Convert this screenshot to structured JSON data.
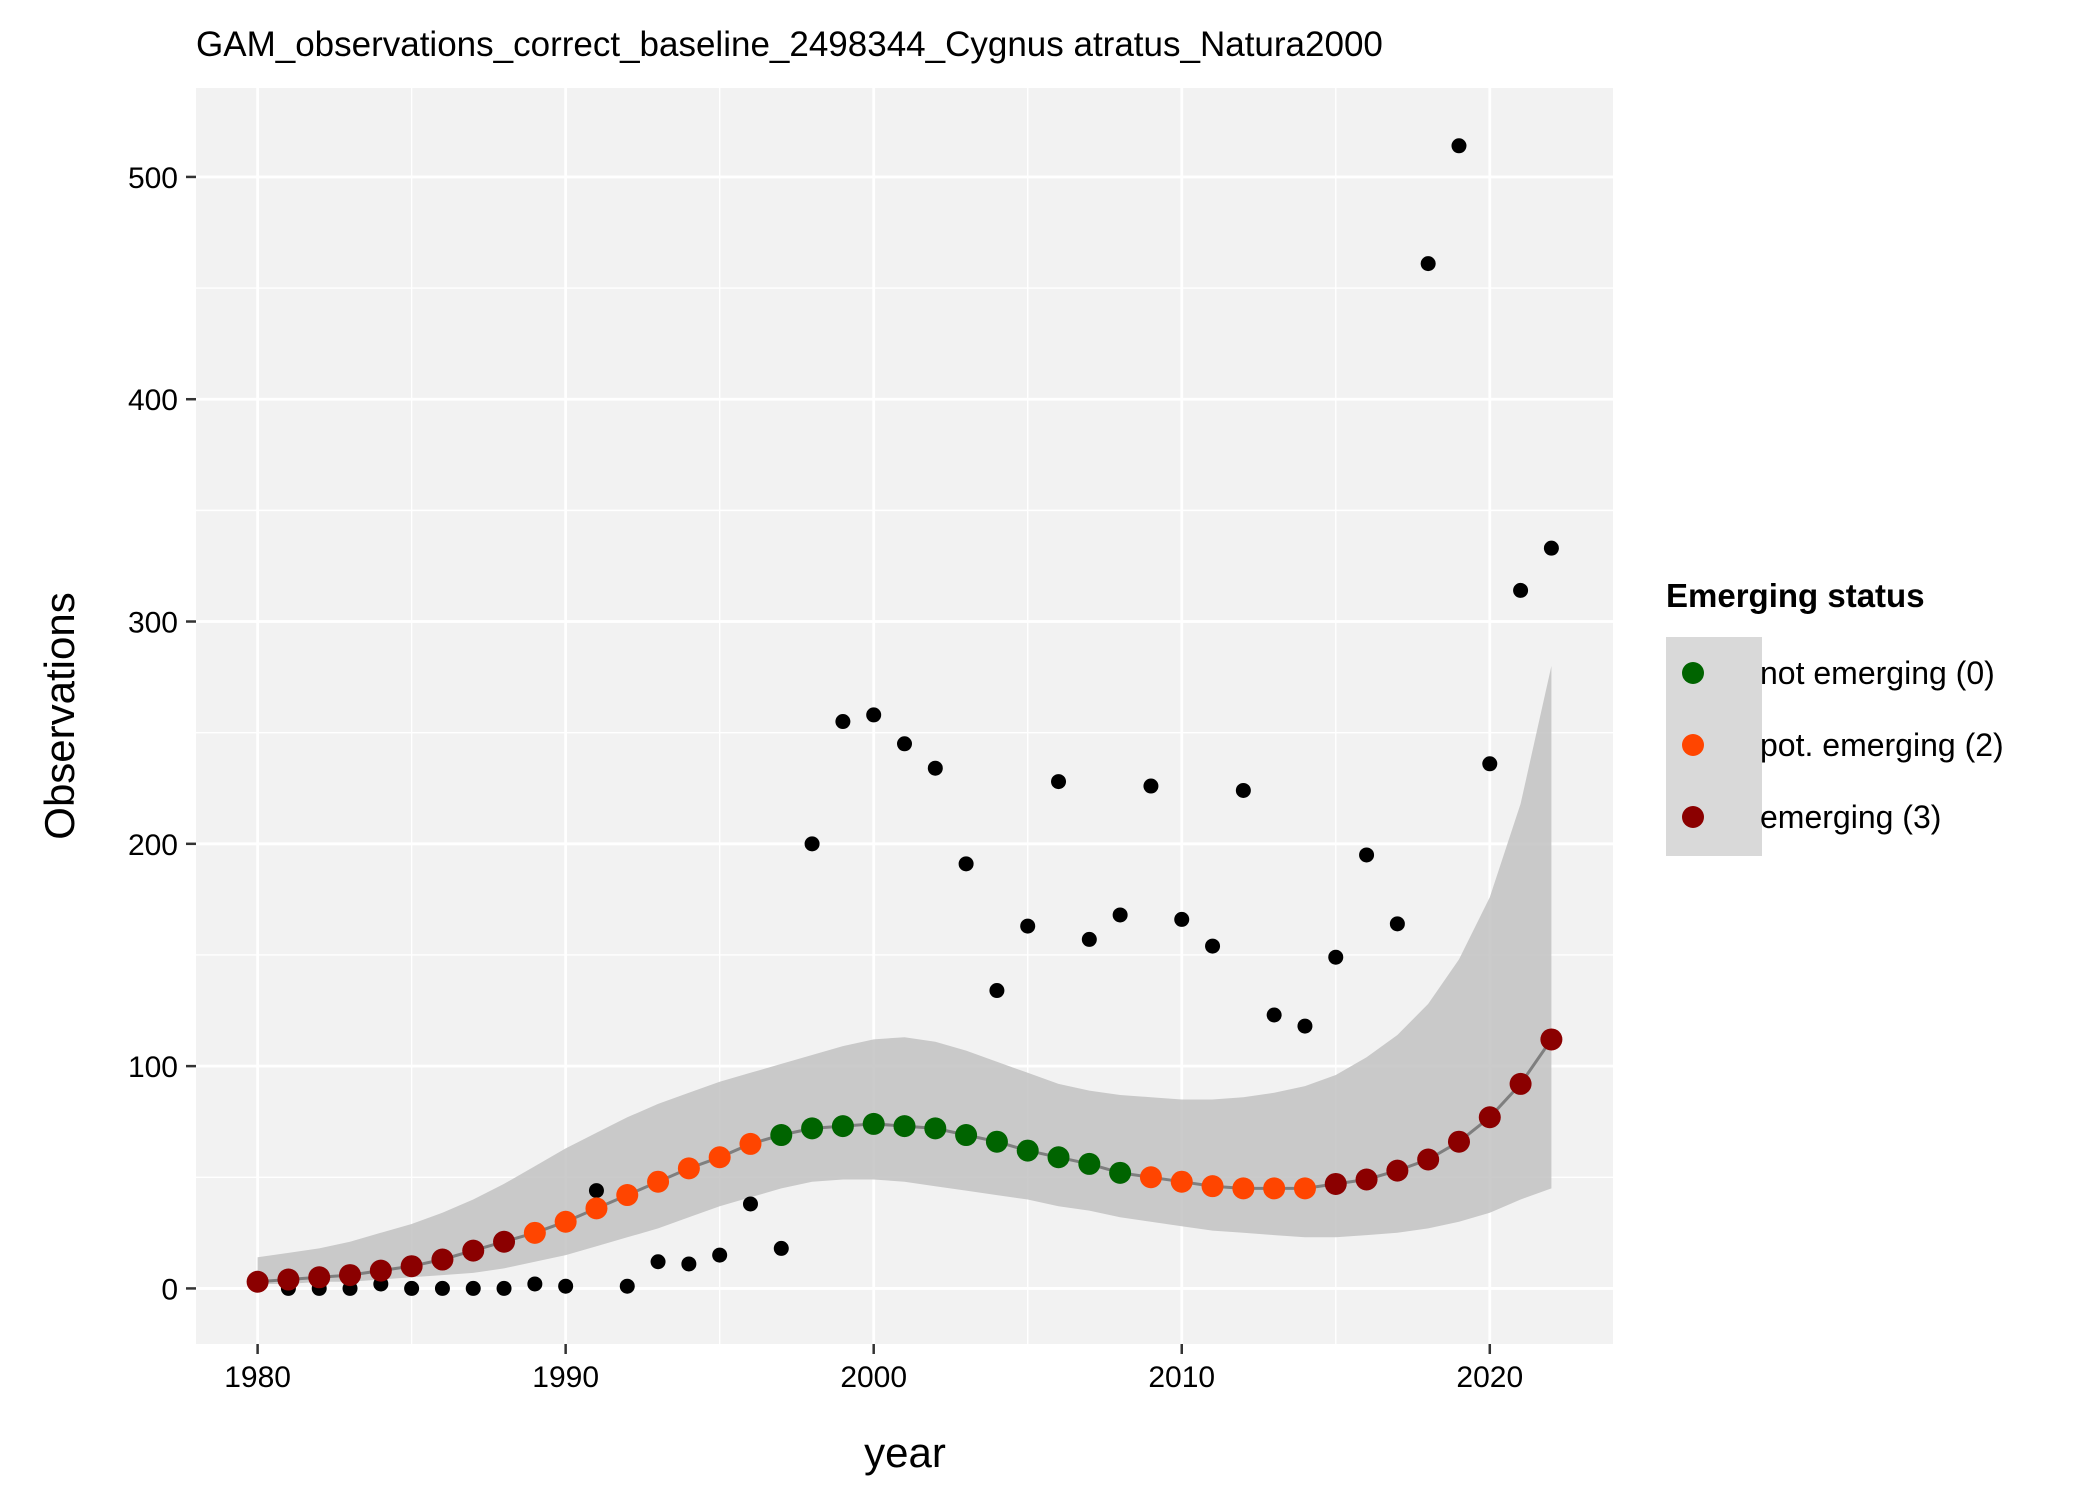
{
  "chart_data": {
    "type": "scatter",
    "title": "GAM_observations_correct_baseline_2498344_Cygnus atratus_Natura2000",
    "xlabel": "year",
    "ylabel": "Observations",
    "xlim": [
      1978,
      2024
    ],
    "ylim": [
      -25,
      540
    ],
    "x_ticks": [
      1980,
      1990,
      2000,
      2010,
      2020
    ],
    "y_ticks": [
      0,
      100,
      200,
      300,
      400,
      500
    ],
    "grid": true,
    "legend": {
      "title": "Emerging status",
      "position": "right",
      "entries": [
        {
          "label": "not emerging (0)",
          "color": "#006400",
          "status": 0
        },
        {
          "label": "pot. emerging (2)",
          "color": "#ff4500",
          "status": 2
        },
        {
          "label": "emerging (3)",
          "color": "#8b0000",
          "status": 3
        }
      ]
    },
    "colors": {
      "panel_bg": "#f2f2f2",
      "grid": "#ffffff",
      "ribbon": "#bebebe",
      "fit_line": "#7f7f7f",
      "observed": "#000000"
    },
    "observed": {
      "x": [
        1980,
        1981,
        1982,
        1983,
        1984,
        1985,
        1986,
        1987,
        1988,
        1989,
        1990,
        1991,
        1992,
        1993,
        1994,
        1995,
        1996,
        1997,
        1998,
        1999,
        2000,
        2001,
        2002,
        2003,
        2004,
        2005,
        2006,
        2007,
        2008,
        2009,
        2010,
        2011,
        2012,
        2013,
        2014,
        2015,
        2016,
        2017,
        2018,
        2019,
        2020,
        2021,
        2022
      ],
      "y": [
        3,
        0,
        0,
        0,
        2,
        0,
        0,
        0,
        0,
        2,
        1,
        44,
        1,
        12,
        11,
        15,
        38,
        18,
        200,
        255,
        258,
        245,
        234,
        191,
        134,
        163,
        228,
        157,
        168,
        226,
        166,
        154,
        224,
        123,
        118,
        149,
        195,
        164,
        461,
        514,
        236,
        314,
        333
      ]
    },
    "fit": {
      "x": [
        1980,
        1981,
        1982,
        1983,
        1984,
        1985,
        1986,
        1987,
        1988,
        1989,
        1990,
        1991,
        1992,
        1993,
        1994,
        1995,
        1996,
        1997,
        1998,
        1999,
        2000,
        2001,
        2002,
        2003,
        2004,
        2005,
        2006,
        2007,
        2008,
        2009,
        2010,
        2011,
        2012,
        2013,
        2014,
        2015,
        2016,
        2017,
        2018,
        2019,
        2020,
        2021,
        2022
      ],
      "y": [
        3,
        4,
        5,
        6,
        8,
        10,
        13,
        17,
        21,
        25,
        30,
        36,
        42,
        48,
        54,
        59,
        65,
        69,
        72,
        73,
        74,
        73,
        72,
        69,
        66,
        62,
        59,
        56,
        52,
        50,
        48,
        46,
        45,
        45,
        45,
        47,
        49,
        53,
        58,
        66,
        77,
        92,
        112
      ],
      "lower": [
        2,
        2,
        3,
        3,
        4,
        5,
        6,
        7,
        9,
        12,
        15,
        19,
        23,
        27,
        32,
        37,
        41,
        45,
        48,
        49,
        49,
        48,
        46,
        44,
        42,
        40,
        37,
        35,
        32,
        30,
        28,
        26,
        25,
        24,
        23,
        23,
        24,
        25,
        27,
        30,
        34,
        40,
        45
      ],
      "upper": [
        14,
        16,
        18,
        21,
        25,
        29,
        34,
        40,
        47,
        55,
        63,
        70,
        77,
        83,
        88,
        93,
        97,
        101,
        105,
        109,
        112,
        113,
        111,
        107,
        102,
        97,
        92,
        89,
        87,
        86,
        85,
        85,
        86,
        88,
        91,
        96,
        104,
        114,
        128,
        148,
        176,
        218,
        280
      ],
      "status": [
        3,
        3,
        3,
        3,
        3,
        3,
        3,
        3,
        3,
        2,
        2,
        2,
        2,
        2,
        2,
        2,
        2,
        0,
        0,
        0,
        0,
        0,
        0,
        0,
        0,
        0,
        0,
        0,
        0,
        2,
        2,
        2,
        2,
        2,
        2,
        3,
        3,
        3,
        3,
        3,
        3,
        3,
        3
      ]
    }
  }
}
